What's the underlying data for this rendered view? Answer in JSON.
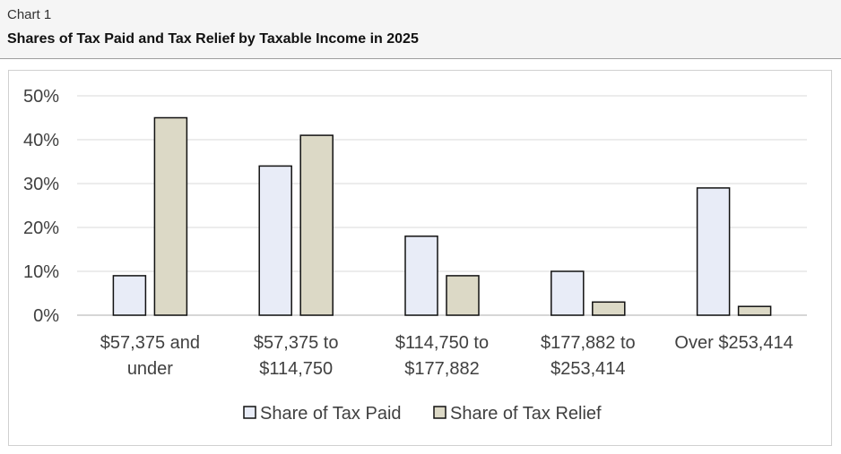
{
  "header": {
    "label": "Chart 1",
    "title": "Shares of Tax Paid and Tax Relief by Taxable Income in 2025"
  },
  "chart_data": {
    "type": "bar",
    "title": "Shares of Tax Paid and Tax Relief by Taxable Income in 2025",
    "xlabel": "",
    "ylabel": "",
    "ylim": [
      0,
      50
    ],
    "yticks": [
      0,
      10,
      20,
      30,
      40,
      50
    ],
    "ytick_labels": [
      "0%",
      "10%",
      "20%",
      "30%",
      "40%",
      "50%"
    ],
    "grid": true,
    "legend_position": "bottom",
    "categories": [
      [
        "$57,375 and",
        "under"
      ],
      [
        "$57,375 to",
        "$114,750"
      ],
      [
        "$114,750 to",
        "$177,882"
      ],
      [
        "$177,882 to",
        "$253,414"
      ],
      [
        "Over $253,414"
      ]
    ],
    "series": [
      {
        "name": "Share of Tax Paid",
        "color": "#e8ecf7",
        "values": [
          9,
          34,
          18,
          10,
          29
        ]
      },
      {
        "name": "Share of Tax Relief",
        "color": "#dcd9c6",
        "values": [
          45,
          41,
          9,
          3,
          2
        ]
      }
    ]
  }
}
